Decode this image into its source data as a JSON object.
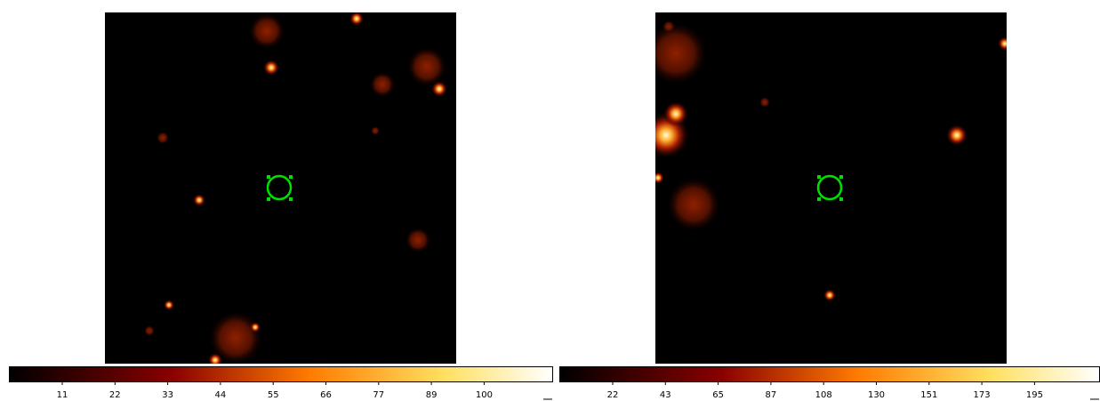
{
  "panels": [
    {
      "colorbar": {
        "ticks": [
          11,
          22,
          33,
          44,
          55,
          66,
          77,
          89,
          100
        ]
      }
    },
    {
      "colorbar": {
        "ticks": [
          22,
          43,
          65,
          87,
          108,
          130,
          151,
          173,
          195
        ]
      }
    }
  ]
}
